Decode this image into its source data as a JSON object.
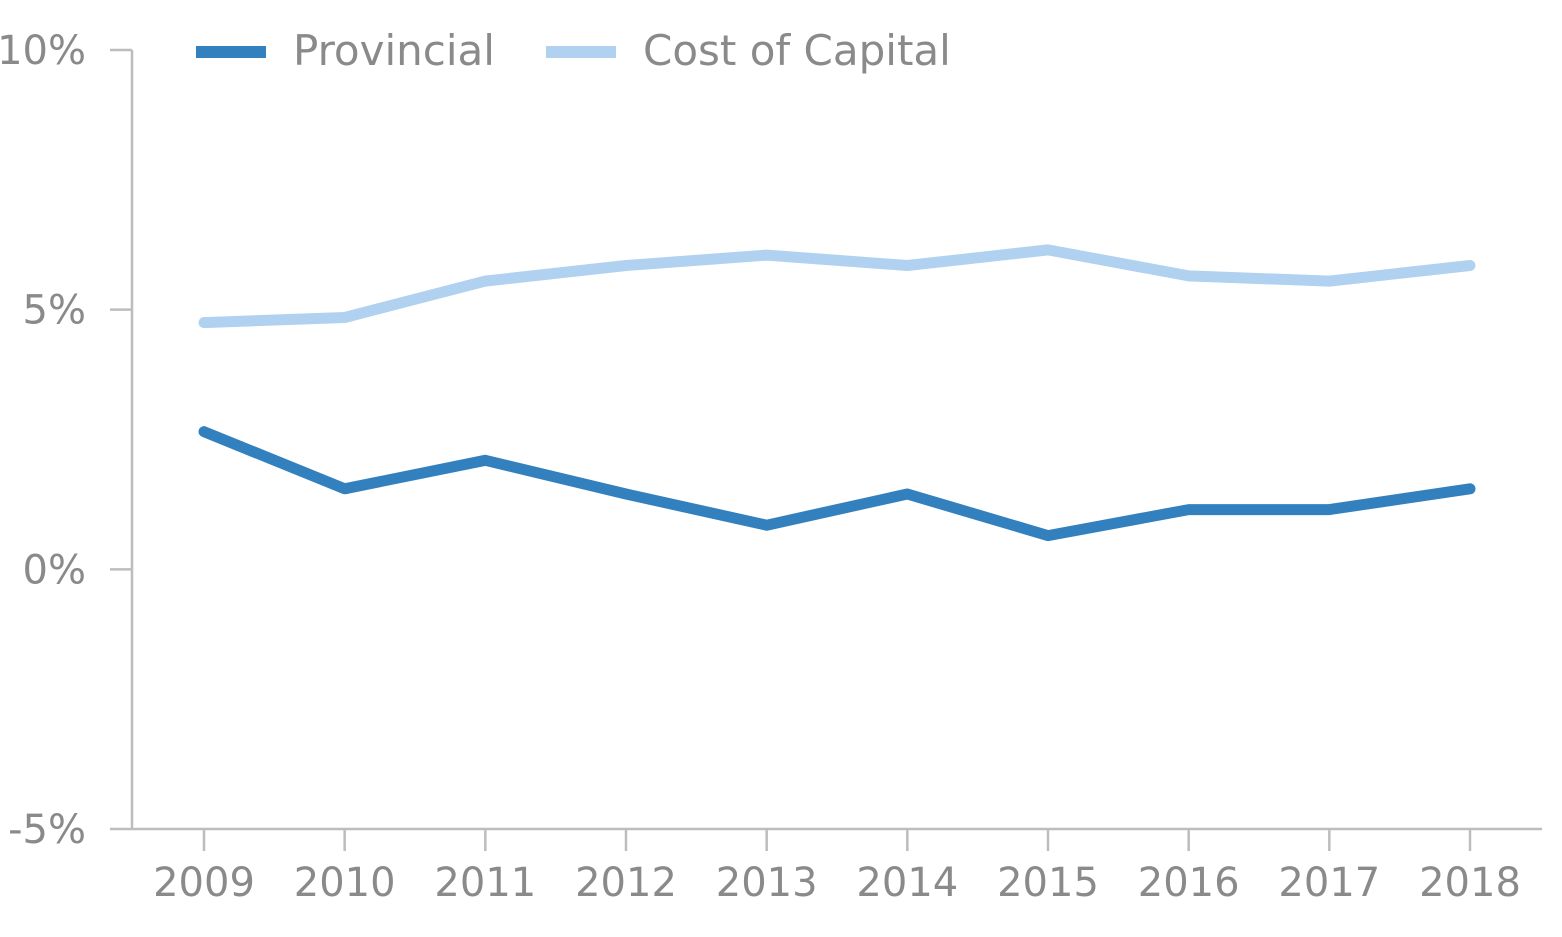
{
  "chart_data": {
    "type": "line",
    "title": "",
    "xlabel": "",
    "ylabel": "",
    "categories": [
      "2009",
      "2010",
      "2011",
      "2012",
      "2013",
      "2014",
      "2015",
      "2016",
      "2017",
      "2018"
    ],
    "series": [
      {
        "name": "Provincial",
        "color": "#3380be",
        "values": [
          2.65,
          1.55,
          2.1,
          1.45,
          0.85,
          1.45,
          0.65,
          1.15,
          1.15,
          1.55
        ]
      },
      {
        "name": "Cost of Capital",
        "color": "#b0d1ef",
        "values": [
          4.75,
          4.85,
          5.55,
          5.85,
          6.05,
          5.85,
          6.15,
          5.65,
          5.55,
          5.85
        ]
      }
    ],
    "ylim": [
      -5,
      10
    ],
    "yticks": [
      10,
      5,
      0,
      -5
    ],
    "ytick_labels": [
      "10%",
      "5%",
      "0%",
      "-5%"
    ],
    "grid": false,
    "legend_position": "top-left"
  }
}
